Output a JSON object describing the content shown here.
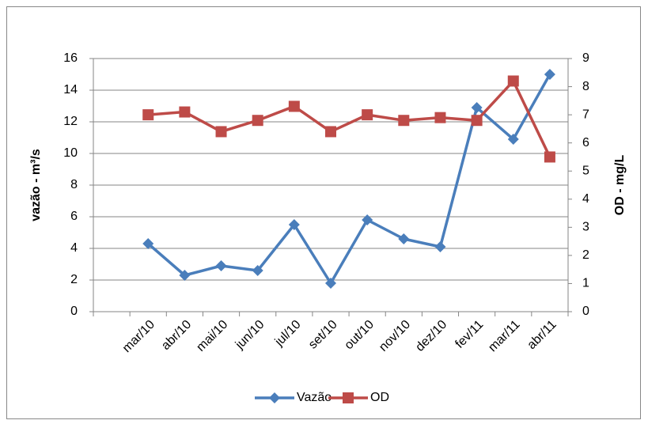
{
  "chart_data": {
    "type": "line",
    "categories": [
      null,
      "mar/10",
      "abr/10",
      "mai/10",
      "jun/10",
      "jul/10",
      "set/10",
      "out/10",
      "nov/10",
      "dez/10",
      "fev/11",
      "mar/11",
      "abr/11"
    ],
    "ylabel": "vazão - m³/s",
    "y2label": "OD - mg/L",
    "ylim": [
      0,
      16
    ],
    "yticks": [
      0,
      2,
      4,
      6,
      8,
      10,
      12,
      14,
      16
    ],
    "y2lim": [
      0,
      9
    ],
    "y2ticks": [
      0,
      1,
      2,
      3,
      4,
      5,
      6,
      7,
      8,
      9
    ],
    "grid": true,
    "legend": "bottom",
    "series": [
      {
        "name": "Vazão",
        "color": "#4a7ebb",
        "marker": "diamond",
        "values": [
          null,
          4.3,
          2.3,
          2.9,
          2.6,
          5.5,
          1.8,
          5.8,
          4.6,
          4.1,
          12.9,
          10.9,
          15.0
        ]
      },
      {
        "name": "OD",
        "color": "#be4b48",
        "marker": "square",
        "axis": "y2",
        "values": [
          null,
          7.0,
          7.1,
          6.4,
          6.8,
          7.3,
          6.4,
          7.0,
          6.8,
          6.9,
          6.8,
          8.2,
          5.5
        ]
      }
    ]
  }
}
